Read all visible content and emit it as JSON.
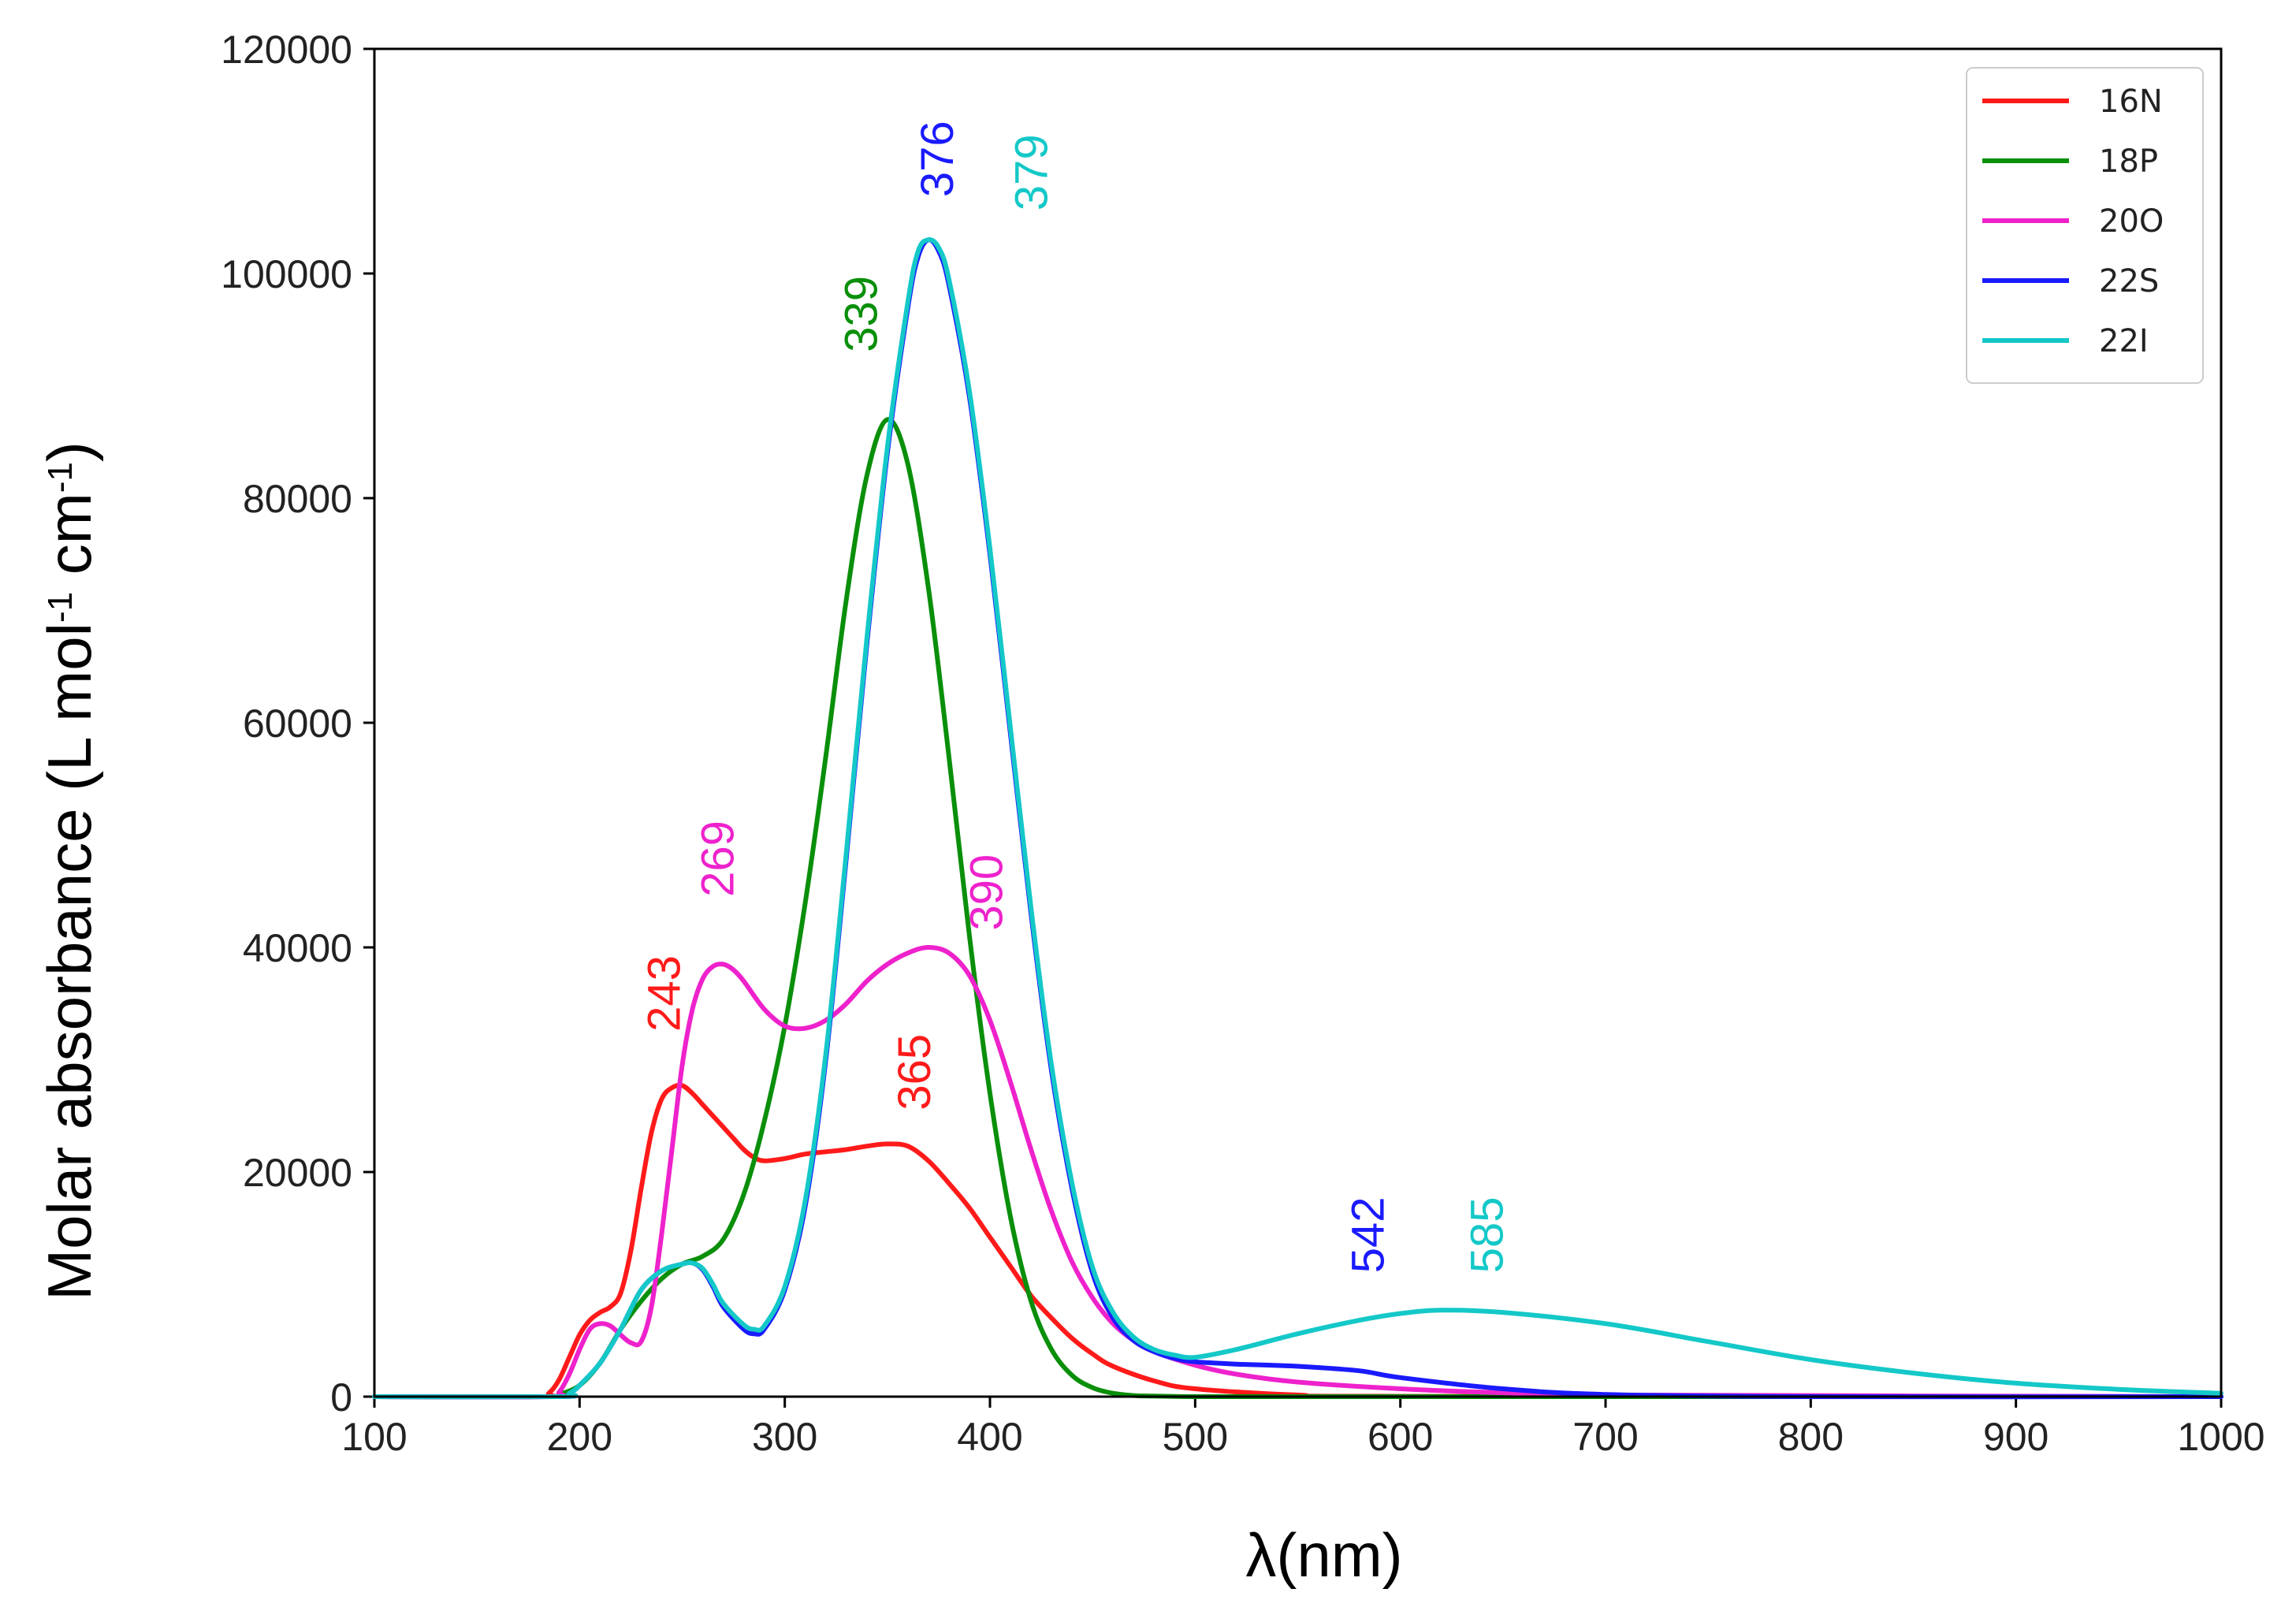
{
  "chart_data": {
    "type": "line",
    "title": "",
    "xlabel": "λ(nm)",
    "ylabel": "Molar absorbance (L mol",
    "ylabel_sup1": "-1",
    "ylabel_mid": " cm",
    "ylabel_sup2": "-1",
    "ylabel_end": ")",
    "xlim": [
      100,
      1000
    ],
    "ylim": [
      0,
      120000
    ],
    "xticks": [
      100,
      200,
      300,
      400,
      500,
      600,
      700,
      800,
      900,
      1000
    ],
    "yticks": [
      0,
      20000,
      40000,
      60000,
      80000,
      100000,
      120000
    ],
    "legend_position": "top-right",
    "series": [
      {
        "name": "16N",
        "color": "#ff1a1a",
        "x": [
          100,
          180,
          185,
          190,
          195,
          200,
          205,
          210,
          215,
          220,
          225,
          230,
          235,
          240,
          245,
          250,
          255,
          260,
          265,
          270,
          275,
          280,
          285,
          290,
          300,
          310,
          320,
          330,
          340,
          350,
          360,
          370,
          380,
          390,
          400,
          410,
          420,
          430,
          440,
          450,
          460,
          480,
          500,
          550,
          600,
          1000
        ],
        "y": [
          0,
          0,
          300,
          1500,
          3500,
          5500,
          6800,
          7500,
          8000,
          9200,
          13000,
          18500,
          23500,
          26500,
          27500,
          27700,
          27000,
          26000,
          25000,
          24000,
          23000,
          22000,
          21300,
          21000,
          21200,
          21600,
          21800,
          22000,
          22300,
          22500,
          22300,
          21000,
          19000,
          16800,
          14200,
          11600,
          9000,
          7000,
          5200,
          3800,
          2700,
          1400,
          700,
          150,
          30,
          0
        ]
      },
      {
        "name": "18P",
        "color": "#0a8f0a",
        "x": [
          100,
          185,
          190,
          200,
          210,
          220,
          230,
          240,
          250,
          260,
          270,
          280,
          290,
          300,
          310,
          320,
          330,
          340,
          350,
          360,
          370,
          380,
          390,
          400,
          410,
          420,
          430,
          440,
          450,
          460,
          470,
          480,
          500,
          520,
          550,
          1000
        ],
        "y": [
          0,
          0,
          200,
          1000,
          3000,
          6000,
          8500,
          10500,
          11800,
          12500,
          14000,
          18000,
          24500,
          33000,
          44000,
          57000,
          71000,
          82000,
          87000,
          83000,
          72000,
          57000,
          41000,
          27000,
          16000,
          8500,
          4200,
          1900,
          800,
          300,
          100,
          50,
          0,
          0,
          0,
          0
        ]
      },
      {
        "name": "20O",
        "color": "#ee22cc",
        "x": [
          100,
          185,
          190,
          195,
          200,
          205,
          210,
          215,
          220,
          225,
          230,
          235,
          240,
          245,
          250,
          255,
          260,
          265,
          270,
          275,
          280,
          290,
          300,
          310,
          320,
          330,
          340,
          350,
          360,
          370,
          380,
          390,
          400,
          410,
          420,
          430,
          440,
          450,
          460,
          470,
          480,
          500,
          520,
          550,
          600,
          650,
          700,
          1000
        ],
        "y": [
          0,
          0,
          400,
          2000,
          4200,
          6000,
          6500,
          6300,
          5500,
          4800,
          4900,
          8000,
          14500,
          22000,
          29500,
          34500,
          37200,
          38300,
          38500,
          38000,
          37000,
          34500,
          33000,
          32800,
          33500,
          35000,
          37000,
          38500,
          39500,
          40000,
          39500,
          37500,
          33500,
          28000,
          22000,
          16500,
          12000,
          8800,
          6500,
          5000,
          4000,
          2800,
          2000,
          1300,
          700,
          350,
          150,
          0
        ]
      },
      {
        "name": "22S",
        "color": "#1a1aff",
        "x": [
          100,
          190,
          195,
          200,
          210,
          220,
          230,
          240,
          250,
          255,
          260,
          265,
          270,
          280,
          285,
          290,
          300,
          310,
          320,
          330,
          340,
          350,
          360,
          365,
          370,
          375,
          380,
          390,
          400,
          410,
          420,
          430,
          440,
          450,
          460,
          470,
          480,
          490,
          500,
          520,
          550,
          580,
          600,
          650,
          700,
          800,
          1000
        ],
        "y": [
          0,
          0,
          300,
          1000,
          3000,
          6000,
          9500,
          11200,
          11800,
          11900,
          11300,
          9800,
          8000,
          6000,
          5600,
          6000,
          9500,
          17000,
          30000,
          48000,
          67000,
          84000,
          97000,
          101500,
          103000,
          102000,
          99000,
          89000,
          75000,
          59000,
          43000,
          29000,
          18500,
          11000,
          7000,
          5000,
          4000,
          3400,
          3100,
          2900,
          2700,
          2300,
          1700,
          700,
          200,
          0,
          0
        ]
      },
      {
        "name": "22I",
        "color": "#14c8c8",
        "x": [
          100,
          190,
          195,
          200,
          210,
          220,
          230,
          240,
          250,
          255,
          260,
          265,
          270,
          280,
          285,
          290,
          300,
          310,
          320,
          330,
          340,
          350,
          360,
          365,
          370,
          375,
          380,
          390,
          400,
          410,
          420,
          430,
          440,
          450,
          460,
          470,
          480,
          490,
          500,
          520,
          550,
          580,
          600,
          620,
          650,
          700,
          750,
          800,
          850,
          900,
          950,
          1000
        ],
        "y": [
          0,
          0,
          300,
          1000,
          3000,
          6000,
          9500,
          11200,
          11800,
          11900,
          11400,
          10000,
          8300,
          6400,
          6000,
          6300,
          9800,
          17500,
          30500,
          48500,
          67500,
          84500,
          97500,
          102000,
          103000,
          102300,
          99500,
          89500,
          75500,
          59500,
          43500,
          29500,
          19000,
          11500,
          7500,
          5300,
          4200,
          3700,
          3500,
          4200,
          5600,
          6800,
          7400,
          7700,
          7500,
          6500,
          4900,
          3300,
          2100,
          1200,
          650,
          300
        ]
      }
    ],
    "annotations": [
      {
        "text": "243",
        "x": 243,
        "y": 32500,
        "color": "#ff1a1a"
      },
      {
        "text": "269",
        "x": 269,
        "y": 44500,
        "color": "#ee22cc"
      },
      {
        "text": "339",
        "x": 339,
        "y": 93000,
        "color": "#0a8f0a"
      },
      {
        "text": "365",
        "x": 365,
        "y": 25500,
        "color": "#ff1a1a"
      },
      {
        "text": "376",
        "x": 376,
        "y": 106800,
        "color": "#1a1aff"
      },
      {
        "text": "379",
        "x": 422,
        "y": 105600,
        "color": "#14c8c8"
      },
      {
        "text": "390",
        "x": 400,
        "y": 41500,
        "color": "#ee22cc"
      },
      {
        "text": "542",
        "x": 586,
        "y": 11000,
        "color": "#1a1aff"
      },
      {
        "text": "585",
        "x": 644,
        "y": 11000,
        "color": "#14c8c8"
      }
    ]
  }
}
